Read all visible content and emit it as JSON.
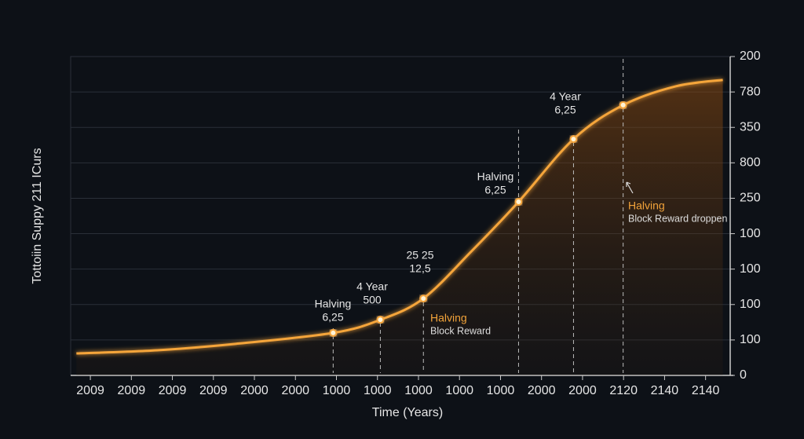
{
  "chart_data": {
    "type": "line",
    "y_label": "Tottoiin Suppy 211 ICurs",
    "x_label": "Time (Years)",
    "categories": [
      "2009",
      "2009",
      "2009",
      "2009",
      "2000",
      "2000",
      "1000",
      "1000",
      "1000",
      "1000",
      "1000",
      "2000",
      "2000",
      "2120",
      "2140",
      "2140"
    ],
    "x": [
      -0.34,
      1.63,
      3.54,
      5.92,
      7.07,
      8.12,
      9.29,
      10.44,
      11.78,
      12.99,
      14.27,
      15.42
    ],
    "values": [
      0.62,
      0.71,
      0.89,
      1.2,
      1.57,
      2.17,
      3.5,
      4.9,
      6.67,
      7.63,
      8.16,
      8.34
    ],
    "xlim": [
      -0.48,
      15.6
    ],
    "ylim": [
      0,
      9
    ],
    "yticks": [
      {
        "value": 0,
        "label": "0"
      },
      {
        "value": 1,
        "label": "100"
      },
      {
        "value": 2,
        "label": "100"
      },
      {
        "value": 3,
        "label": "100"
      },
      {
        "value": 4,
        "label": "100"
      },
      {
        "value": 5,
        "label": "250"
      },
      {
        "value": 6,
        "label": "800"
      },
      {
        "value": 7,
        "label": "350"
      },
      {
        "value": 8,
        "label": "780"
      },
      {
        "value": 9,
        "label": "200"
      }
    ],
    "color": "#f5a53a",
    "grid": true,
    "annotations": [
      [
        "Halving",
        "6,25"
      ],
      [
        "4 Year",
        "500"
      ],
      [
        "25 25",
        "12,5"
      ],
      [
        "Halving",
        "6,25"
      ],
      [
        "4 Year",
        "6,25"
      ]
    ],
    "callouts": [
      [
        "Halving",
        "Block Reward"
      ],
      [
        "Halving",
        "Block Reward droppen"
      ]
    ]
  }
}
